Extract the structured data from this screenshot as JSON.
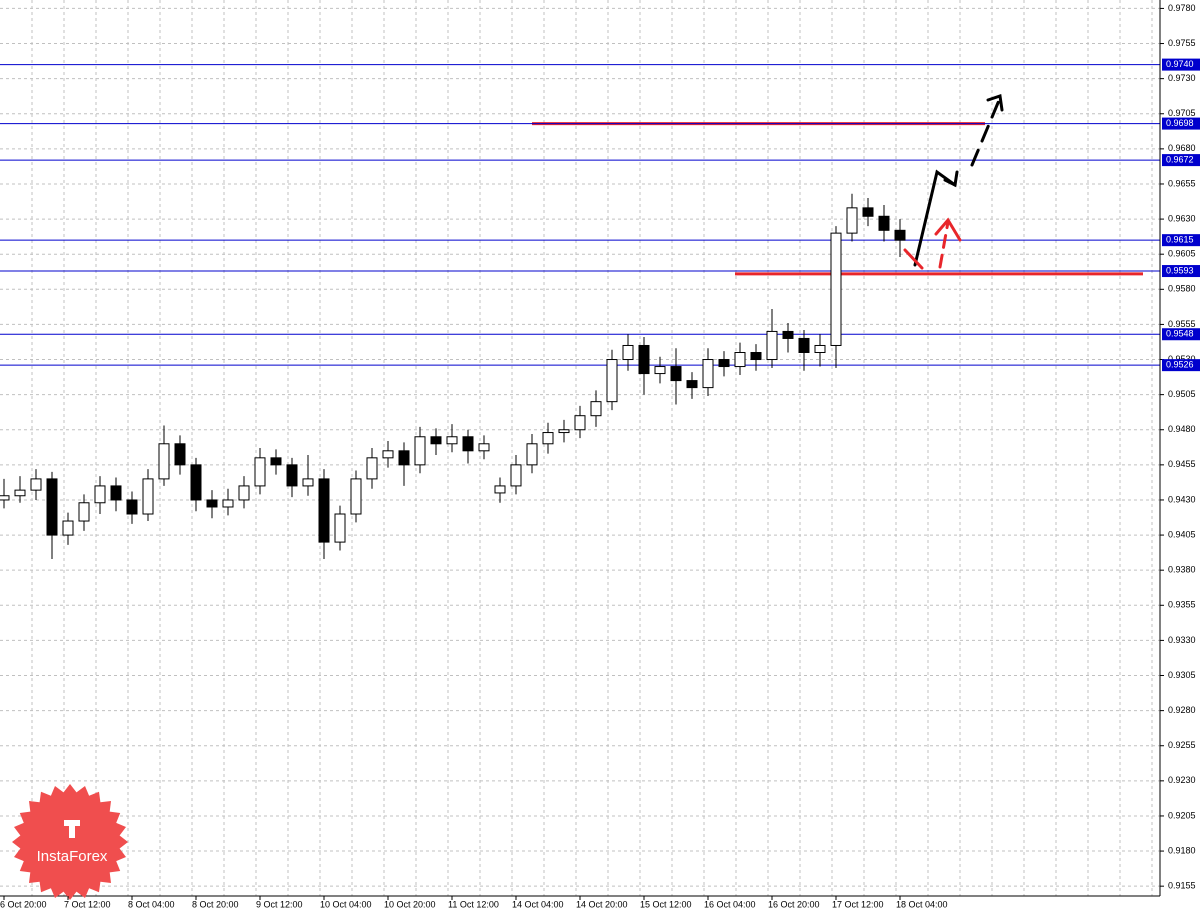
{
  "chart_data": {
    "type": "candlestick",
    "categories": [
      "6 Oct 20:00",
      null,
      null,
      null,
      "7 Oct 12:00",
      null,
      null,
      null,
      "8 Oct 04:00",
      null,
      null,
      null,
      "8 Oct 20:00",
      null,
      null,
      null,
      "9 Oct 12:00",
      null,
      null,
      null,
      "10 Oct 04:00",
      null,
      null,
      null,
      "10 Oct 20:00",
      null,
      null,
      null,
      "11 Oct 12:00",
      null,
      null,
      null,
      "14 Oct 04:00",
      null,
      null,
      null,
      "14 Oct 20:00",
      null,
      null,
      null,
      "15 Oct 12:00",
      null,
      null,
      null,
      "16 Oct 04:00",
      null,
      null,
      null,
      "16 Oct 20:00",
      null,
      null,
      null,
      "17 Oct 12:00",
      null,
      null,
      null,
      "18 Oct 04:00"
    ],
    "open": [
      0.943,
      0.9433,
      0.9437,
      0.9445,
      0.9405,
      0.9415,
      0.9428,
      0.944,
      0.943,
      0.942,
      0.9445,
      0.947,
      0.9455,
      0.943,
      0.9425,
      0.943,
      0.944,
      0.946,
      0.9455,
      0.944,
      0.9445,
      0.94,
      0.942,
      0.9445,
      0.946,
      0.9465,
      0.9455,
      0.9475,
      0.947,
      0.9475,
      0.9465,
      0.9435,
      0.944,
      0.9455,
      0.947,
      0.9478,
      0.948,
      0.949,
      0.95,
      0.953,
      0.954,
      0.952,
      0.9525,
      0.9515,
      0.951,
      0.953,
      0.9525,
      0.9535,
      0.953,
      0.955,
      0.9545,
      0.9535,
      0.954,
      0.962,
      0.9638,
      0.9632,
      0.9622
    ],
    "high": [
      0.9445,
      0.9447,
      0.9452,
      0.945,
      0.9421,
      0.9434,
      0.9447,
      0.9446,
      0.9436,
      0.9452,
      0.9483,
      0.9476,
      0.946,
      0.9437,
      0.9438,
      0.9447,
      0.9467,
      0.9466,
      0.946,
      0.9462,
      0.9452,
      0.9426,
      0.9451,
      0.9467,
      0.9472,
      0.9471,
      0.9482,
      0.9481,
      0.9484,
      0.948,
      0.9476,
      0.9446,
      0.9462,
      0.9477,
      0.9485,
      0.9487,
      0.9497,
      0.9508,
      0.9537,
      0.9548,
      0.9546,
      0.9532,
      0.9538,
      0.9521,
      0.9538,
      0.9536,
      0.9542,
      0.9541,
      0.9566,
      0.9556,
      0.9551,
      0.9548,
      0.9625,
      0.9648,
      0.9645,
      0.964,
      0.963
    ],
    "low": [
      0.9424,
      0.9428,
      0.943,
      0.9388,
      0.9398,
      0.9408,
      0.942,
      0.9422,
      0.9413,
      0.9415,
      0.944,
      0.9448,
      0.9422,
      0.9417,
      0.9419,
      0.9424,
      0.9434,
      0.9448,
      0.9432,
      0.9433,
      0.9388,
      0.9394,
      0.9414,
      0.9438,
      0.9453,
      0.944,
      0.9449,
      0.9462,
      0.9464,
      0.9456,
      0.9459,
      0.9428,
      0.9434,
      0.9449,
      0.9463,
      0.9471,
      0.9474,
      0.9482,
      0.9494,
      0.9522,
      0.9505,
      0.9513,
      0.9498,
      0.9502,
      0.9504,
      0.9518,
      0.9519,
      0.9522,
      0.9524,
      0.9535,
      0.9522,
      0.9525,
      0.9524,
      0.9614,
      0.9625,
      0.9614,
      0.9603
    ],
    "close": [
      0.9433,
      0.9437,
      0.9445,
      0.9405,
      0.9415,
      0.9428,
      0.944,
      0.943,
      0.942,
      0.9445,
      0.947,
      0.9455,
      0.943,
      0.9425,
      0.943,
      0.944,
      0.946,
      0.9455,
      0.944,
      0.9445,
      0.94,
      0.942,
      0.9445,
      0.946,
      0.9465,
      0.9455,
      0.9475,
      0.947,
      0.9475,
      0.9465,
      0.947,
      0.944,
      0.9455,
      0.947,
      0.9478,
      0.948,
      0.949,
      0.95,
      0.953,
      0.954,
      0.952,
      0.9525,
      0.9515,
      0.951,
      0.953,
      0.9525,
      0.9535,
      0.953,
      0.955,
      0.9545,
      0.9535,
      0.954,
      0.962,
      0.9638,
      0.9632,
      0.9622,
      0.9615
    ],
    "ylim": [
      0.9148,
      0.9786
    ],
    "yticks": [
      {
        "value": 0.978,
        "label": "0.9780"
      },
      0.9755,
      {
        "value": 0.973,
        "label": "0.9730"
      },
      0.9705,
      {
        "value": 0.968,
        "label": "0.9680"
      },
      0.9655,
      {
        "value": 0.963,
        "label": "0.9630"
      },
      0.9605,
      {
        "value": 0.958,
        "label": "0.9580"
      },
      0.9555,
      {
        "value": 0.953,
        "label": "0.9530"
      },
      0.9505,
      {
        "value": 0.948,
        "label": "0.9480"
      },
      0.9455,
      {
        "value": 0.943,
        "label": "0.9430"
      },
      0.9405,
      {
        "value": 0.938,
        "label": "0.9380"
      },
      0.9355,
      {
        "value": 0.933,
        "label": "0.9330"
      },
      0.9305,
      {
        "value": 0.928,
        "label": "0.9280"
      },
      0.9255,
      {
        "value": 0.923,
        "label": "0.9230"
      },
      0.9205,
      {
        "value": 0.918,
        "label": "0.9180"
      },
      0.9155
    ],
    "levels": [
      {
        "value": 0.974,
        "label": "0.9740"
      },
      0.9698,
      0.9672,
      0.9615,
      0.9593,
      0.9548,
      0.9526
    ],
    "level_color": "#0000cd",
    "red_lines": [
      0.9698,
      0.9591
    ],
    "red_color": "#e8262b",
    "grid": true
  },
  "watermark": "InstaForex"
}
